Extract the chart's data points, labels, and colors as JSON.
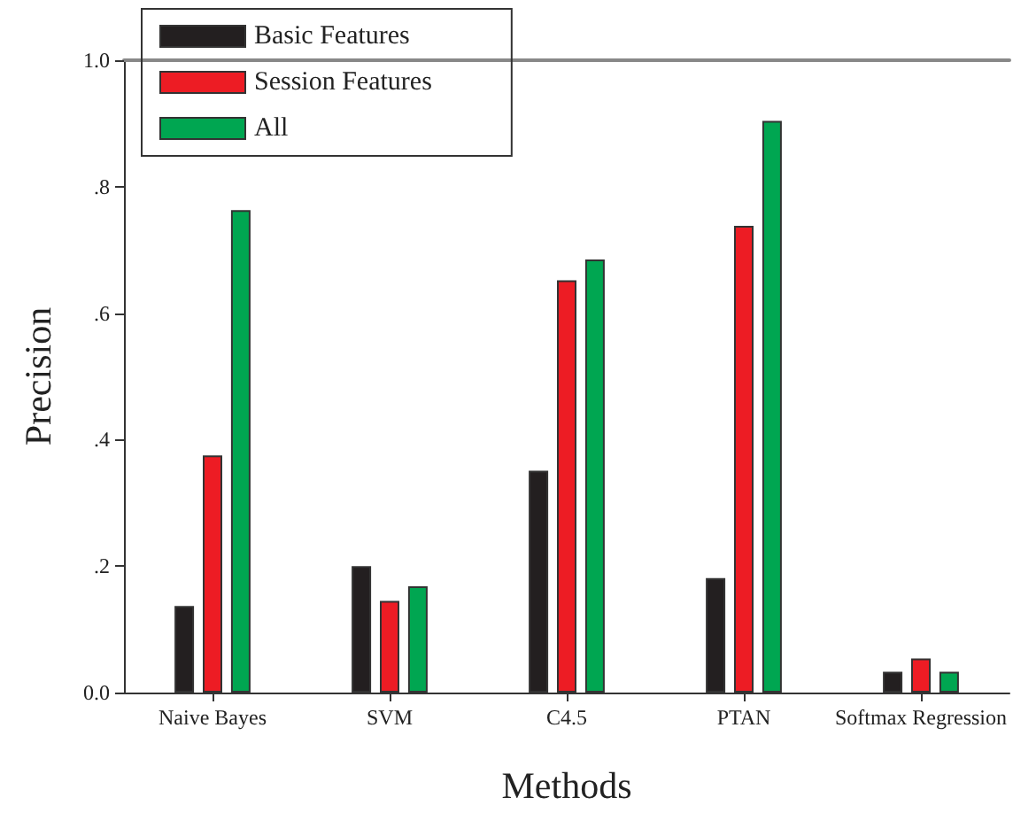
{
  "chart_data": {
    "type": "bar",
    "xlabel": "Methods",
    "ylabel": "Precision",
    "categories": [
      "Naive Bayes",
      "SVM",
      "C4.5",
      "PTAN",
      "Softmax Regression"
    ],
    "series": [
      {
        "name": "Basic Features",
        "color": "#231f20",
        "values": [
          0.137,
          0.2,
          0.351,
          0.181,
          0.033
        ]
      },
      {
        "name": "Session Features",
        "color": "#ed1c24",
        "values": [
          0.375,
          0.145,
          0.652,
          0.738,
          0.054
        ]
      },
      {
        "name": "All",
        "color": "#00a651",
        "values": [
          0.763,
          0.168,
          0.685,
          0.904,
          0.033
        ]
      }
    ],
    "ylim": [
      0,
      1
    ],
    "yticks": [
      {
        "value": 0,
        "label": "0.0"
      },
      {
        "value": 0.2,
        "label": ".2"
      },
      {
        "value": 0.4,
        "label": ".4"
      },
      {
        "value": 0.6,
        "label": ".6"
      },
      {
        "value": 0.8,
        "label": ".8"
      },
      {
        "value": 1,
        "label": "1.0"
      }
    ],
    "grid": false,
    "legend": "top left"
  }
}
